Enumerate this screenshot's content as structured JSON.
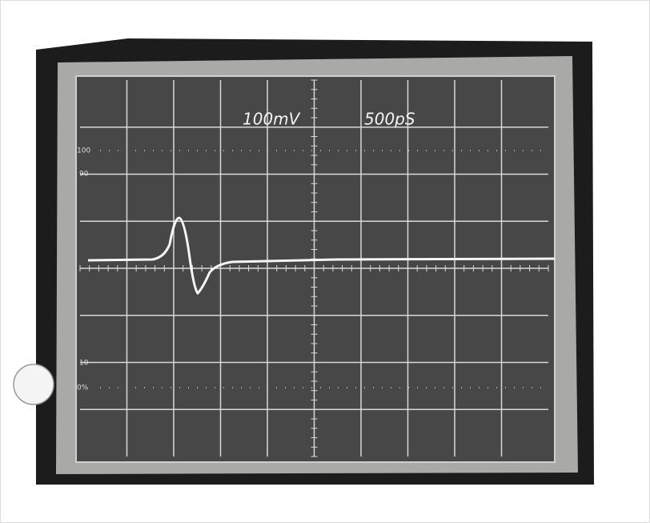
{
  "screen": {
    "volts_per_div": "100mV",
    "time_per_div": "500pS",
    "scale_labels": [
      "100",
      "90",
      "10",
      "0%"
    ]
  }
}
